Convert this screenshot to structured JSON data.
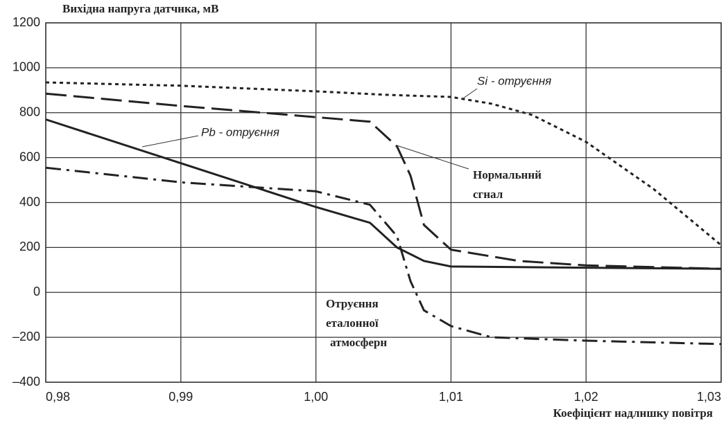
{
  "chart_data": {
    "type": "line",
    "title": "Вихідна напруга датчнка, мВ",
    "x_label": "Коефіцієнт надлншку повітря",
    "xlim": [
      0.98,
      1.03
    ],
    "xticks": [
      {
        "value": 0.98,
        "label": "0,98"
      },
      {
        "value": 0.99,
        "label": "0,99"
      },
      {
        "value": 1.0,
        "label": "1,00"
      },
      {
        "value": 1.01,
        "label": "1,01"
      },
      {
        "value": 1.02,
        "label": "1,02"
      },
      {
        "value": 1.03,
        "label": "1,03"
      }
    ],
    "ylim": [
      -400,
      1200
    ],
    "yticks": [
      {
        "value": -400,
        "label": "–400"
      },
      {
        "value": -200,
        "label": "–200"
      },
      0,
      200,
      400,
      600,
      800,
      1000,
      1200
    ],
    "grid": true,
    "series": [
      {
        "name": "Si - отруєння",
        "color": "#222222",
        "dash": "dotted",
        "x": [
          0.98,
          0.99,
          1.0,
          1.005,
          1.01,
          1.013,
          1.016,
          1.02,
          1.025,
          1.03
        ],
        "values": [
          935,
          920,
          895,
          880,
          870,
          840,
          790,
          670,
          460,
          210
        ]
      },
      {
        "name": "Нормальннй сгнал",
        "color": "#222222",
        "dash": "dashed",
        "x": [
          0.98,
          0.99,
          1.0,
          1.004,
          1.006,
          1.007,
          1.008,
          1.01,
          1.015,
          1.02,
          1.03
        ],
        "values": [
          885,
          830,
          780,
          760,
          650,
          520,
          300,
          190,
          140,
          120,
          105
        ]
      },
      {
        "name": "Pb - отруєння",
        "color": "#222222",
        "dash": "solid",
        "x": [
          0.98,
          0.99,
          1.0,
          1.004,
          1.006,
          1.008,
          1.01,
          1.02,
          1.03
        ],
        "values": [
          770,
          575,
          380,
          310,
          200,
          140,
          115,
          110,
          105
        ]
      },
      {
        "name": "Отруєння еталонної атмосферн",
        "color": "#222222",
        "dash": "dashdot",
        "x": [
          0.98,
          0.99,
          1.0,
          1.004,
          1.006,
          1.007,
          1.008,
          1.01,
          1.013,
          1.02,
          1.03
        ],
        "values": [
          555,
          490,
          450,
          390,
          250,
          50,
          -80,
          -150,
          -200,
          -215,
          -230
        ]
      }
    ]
  }
}
